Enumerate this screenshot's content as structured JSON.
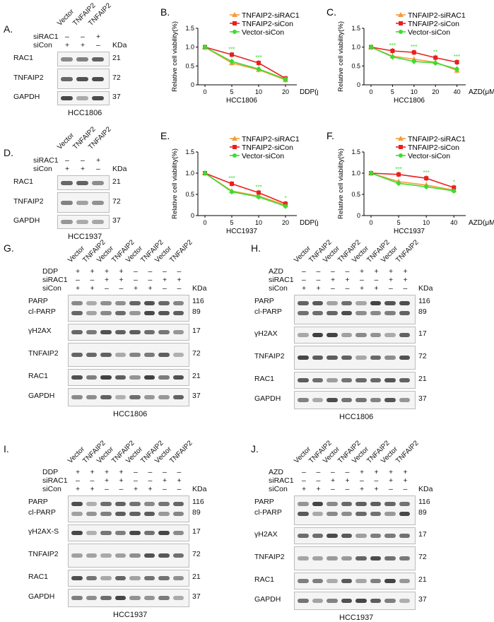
{
  "panels": {
    "A": {
      "letter": "A.",
      "cell": "HCC1806",
      "lanes": [
        "Vector",
        "TNFAIP2",
        "TNFAIP2"
      ],
      "rows": [
        {
          "label": "siRAC1",
          "vals": [
            "–",
            "–",
            "+"
          ]
        },
        {
          "label": "siCon",
          "vals": [
            "+",
            "+",
            "–"
          ]
        }
      ],
      "bands": [
        {
          "name": "RAC1",
          "kda": "21"
        },
        {
          "name": "TNFAIP2",
          "kda": "72"
        },
        {
          "name": "GAPDH",
          "kda": "37"
        }
      ],
      "kda": "KDa"
    },
    "D": {
      "letter": "D.",
      "cell": "HCC1937",
      "lanes": [
        "Vector",
        "TNFAIP2",
        "TNFAIP2"
      ],
      "rows": [
        {
          "label": "siRAC1",
          "vals": [
            "–",
            "–",
            "+"
          ]
        },
        {
          "label": "siCon",
          "vals": [
            "+",
            "+",
            "–"
          ]
        }
      ],
      "bands": [
        {
          "name": "RAC1",
          "kda": "21"
        },
        {
          "name": "TNFAIP2",
          "kda": "72"
        },
        {
          "name": "GAPDH",
          "kda": "37"
        }
      ],
      "kda": "KDa"
    },
    "G": {
      "letter": "G.",
      "cell": "HCC1806",
      "lanes": [
        "Vector",
        "TNFAIP2",
        "Vector",
        "TNFAIP2",
        "Vector",
        "TNFAIP2",
        "Vector",
        "TNFAIP2"
      ],
      "rows": [
        {
          "label": "DDP",
          "vals": [
            "+",
            "+",
            "+",
            "+",
            "–",
            "–",
            "–",
            "–"
          ]
        },
        {
          "label": "siRAC1",
          "vals": [
            "–",
            "–",
            "+",
            "+",
            "–",
            "–",
            "+",
            "+"
          ]
        },
        {
          "label": "siCon",
          "vals": [
            "+",
            "+",
            "–",
            "–",
            "+",
            "+",
            "–",
            "–"
          ]
        }
      ],
      "bands": [
        {
          "name": "PARP",
          "kda": "116"
        },
        {
          "name": "cl-PARP",
          "kda": "89"
        },
        {
          "name": "γH2AX",
          "kda": "17"
        },
        {
          "name": "TNFAIP2",
          "kda": "72"
        },
        {
          "name": "RAC1",
          "kda": "21"
        },
        {
          "name": "GAPDH",
          "kda": "37"
        }
      ],
      "kda": "KDa"
    },
    "H": {
      "letter": "H.",
      "cell": "HCC1806",
      "lanes": [
        "Vector",
        "TNFAIP2",
        "Vector",
        "TNFAIP2",
        "Vector",
        "TNFAIP2",
        "Vector",
        "TNFAIP2"
      ],
      "rows": [
        {
          "label": "AZD",
          "vals": [
            "–",
            "–",
            "–",
            "–",
            "+",
            "+",
            "+",
            "+"
          ]
        },
        {
          "label": "siRAC1",
          "vals": [
            "–",
            "–",
            "+",
            "+",
            "–",
            "–",
            "+",
            "+"
          ]
        },
        {
          "label": "siCon",
          "vals": [
            "+",
            "+",
            "–",
            "–",
            "+",
            "+",
            "–",
            "–"
          ]
        }
      ],
      "bands": [
        {
          "name": "PARP",
          "kda": "116"
        },
        {
          "name": "cl-PARP",
          "kda": "89"
        },
        {
          "name": "γH2AX",
          "kda": "17"
        },
        {
          "name": "TNFAIP2",
          "kda": "72"
        },
        {
          "name": "RAC1",
          "kda": "21"
        },
        {
          "name": "GAPDH",
          "kda": "37"
        }
      ],
      "kda": "KDa"
    },
    "I": {
      "letter": "I.",
      "cell": "HCC1937",
      "lanes": [
        "Vector",
        "TNFAIP2",
        "Vector",
        "TNFAIP2",
        "Vector",
        "TNFAIP2",
        "Vector",
        "TNFAIP2"
      ],
      "rows": [
        {
          "label": "DDP",
          "vals": [
            "+",
            "+",
            "+",
            "+",
            "–",
            "–",
            "–",
            "–"
          ]
        },
        {
          "label": "siRAC1",
          "vals": [
            "–",
            "–",
            "+",
            "+",
            "–",
            "–",
            "+",
            "+"
          ]
        },
        {
          "label": "siCon",
          "vals": [
            "+",
            "+",
            "–",
            "–",
            "+",
            "+",
            "–",
            "–"
          ]
        }
      ],
      "bands": [
        {
          "name": "PARP",
          "kda": "116"
        },
        {
          "name": "cl-PARP",
          "kda": "89"
        },
        {
          "name": "γH2AX-S",
          "kda": "17"
        },
        {
          "name": "TNFAIP2",
          "kda": "72"
        },
        {
          "name": "RAC1",
          "kda": "21"
        },
        {
          "name": "GAPDH",
          "kda": "37"
        }
      ],
      "kda": "KDa"
    },
    "J": {
      "letter": "J.",
      "cell": "HCC1937",
      "lanes": [
        "Vector",
        "TNFAIP2",
        "Vector",
        "TNFAIP2",
        "Vector",
        "TNFAIP2",
        "Vector",
        "TNFAIP2"
      ],
      "rows": [
        {
          "label": "AZD",
          "vals": [
            "–",
            "–",
            "–",
            "–",
            "+",
            "+",
            "+",
            "+"
          ]
        },
        {
          "label": "siRAC1",
          "vals": [
            "–",
            "–",
            "+",
            "+",
            "–",
            "–",
            "+",
            "+"
          ]
        },
        {
          "label": "siCon",
          "vals": [
            "+",
            "+",
            "–",
            "–",
            "+",
            "+",
            "–",
            "–"
          ]
        }
      ],
      "bands": [
        {
          "name": "PARP",
          "kda": "116"
        },
        {
          "name": "cl-PARP",
          "kda": "89"
        },
        {
          "name": "γH2AX",
          "kda": "17"
        },
        {
          "name": "TNFAIP2",
          "kda": "72"
        },
        {
          "name": "RAC1",
          "kda": "21"
        },
        {
          "name": "GAPDH",
          "kda": "37"
        }
      ],
      "kda": "KDa"
    }
  },
  "chart_data": [
    {
      "panel": "B.",
      "type": "line",
      "xlabel": "HCC1806",
      "xunit": "DDP(μM)",
      "ylabel": "Relative cell viability(%)",
      "x": [
        "0",
        "5",
        "10",
        "20"
      ],
      "ylim": [
        0,
        1.5
      ],
      "yticks": [
        "0",
        "0.5",
        "1.0",
        "1.5"
      ],
      "series": [
        {
          "name": "TNFAIP2-siRAC1",
          "color": "#f39c3c",
          "marker": "tri",
          "values": [
            1.0,
            0.58,
            0.4,
            0.13
          ]
        },
        {
          "name": "TNFAIP2-siCon",
          "color": "#e8201e",
          "marker": "sq",
          "values": [
            1.0,
            0.8,
            0.58,
            0.17
          ]
        },
        {
          "name": "Vector-siCon",
          "color": "#3ddc2f",
          "marker": "dot",
          "values": [
            1.0,
            0.62,
            0.42,
            0.15
          ]
        }
      ],
      "annotations": [
        {
          "x": "5",
          "text": "***"
        },
        {
          "x": "10",
          "text": "***"
        }
      ]
    },
    {
      "panel": "C.",
      "type": "line",
      "xlabel": "HCC1806",
      "xunit": "AZD(μM)",
      "ylabel": "Relative cell viability(%)",
      "x": [
        "0",
        "5",
        "10",
        "20",
        "40"
      ],
      "ylim": [
        0,
        1.5
      ],
      "yticks": [
        "0",
        "0.5",
        "1.0",
        "1.5"
      ],
      "series": [
        {
          "name": "TNFAIP2-siRAC1",
          "color": "#f39c3c",
          "marker": "tri",
          "values": [
            1.0,
            0.76,
            0.68,
            0.6,
            0.38
          ]
        },
        {
          "name": "TNFAIP2-siCon",
          "color": "#e8201e",
          "marker": "sq",
          "values": [
            1.0,
            0.9,
            0.86,
            0.72,
            0.6
          ]
        },
        {
          "name": "Vector-siCon",
          "color": "#3ddc2f",
          "marker": "dot",
          "values": [
            1.0,
            0.74,
            0.62,
            0.58,
            0.42
          ]
        }
      ],
      "annotations": [
        {
          "x": "5",
          "text": "***"
        },
        {
          "x": "10",
          "text": "***"
        },
        {
          "x": "20",
          "text": "**"
        },
        {
          "x": "40",
          "text": "***"
        }
      ]
    },
    {
      "panel": "E.",
      "type": "line",
      "xlabel": "HCC1937",
      "xunit": "DDP(μM)",
      "ylabel": "Relative cell viability(%)",
      "x": [
        "0",
        "5",
        "10",
        "20"
      ],
      "ylim": [
        0,
        1.5
      ],
      "yticks": [
        "0",
        "0.5",
        "1.0",
        "1.5"
      ],
      "series": [
        {
          "name": "TNFAIP2-siRAC1",
          "color": "#f39c3c",
          "marker": "tri",
          "values": [
            1.0,
            0.58,
            0.46,
            0.25
          ]
        },
        {
          "name": "TNFAIP2-siCon",
          "color": "#e8201e",
          "marker": "sq",
          "values": [
            1.0,
            0.75,
            0.54,
            0.28
          ]
        },
        {
          "name": "Vector-siCon",
          "color": "#3ddc2f",
          "marker": "dot",
          "values": [
            1.0,
            0.56,
            0.44,
            0.22
          ]
        }
      ],
      "annotations": [
        {
          "x": "5",
          "text": "***"
        },
        {
          "x": "10",
          "text": "***"
        },
        {
          "x": "20",
          "text": "*"
        }
      ]
    },
    {
      "panel": "F.",
      "type": "line",
      "xlabel": "HCC1937",
      "xunit": "AZD(μM)",
      "ylabel": "Relative cell viability(%)",
      "x": [
        "0",
        "5",
        "10",
        "40"
      ],
      "ylim": [
        0,
        1.5
      ],
      "yticks": [
        "0",
        "0.5",
        "1.0",
        "1.5"
      ],
      "series": [
        {
          "name": "TNFAIP2-siRAC1",
          "color": "#f39c3c",
          "marker": "tri",
          "values": [
            1.0,
            0.8,
            0.72,
            0.6
          ]
        },
        {
          "name": "TNFAIP2-siCon",
          "color": "#e8201e",
          "marker": "sq",
          "values": [
            1.0,
            0.97,
            0.88,
            0.66
          ]
        },
        {
          "name": "Vector-siCon",
          "color": "#3ddc2f",
          "marker": "dot",
          "values": [
            1.0,
            0.76,
            0.68,
            0.58
          ]
        }
      ],
      "annotations": [
        {
          "x": "5",
          "text": "***"
        },
        {
          "x": "10",
          "text": "***"
        },
        {
          "x": "40",
          "text": "*"
        }
      ]
    }
  ]
}
